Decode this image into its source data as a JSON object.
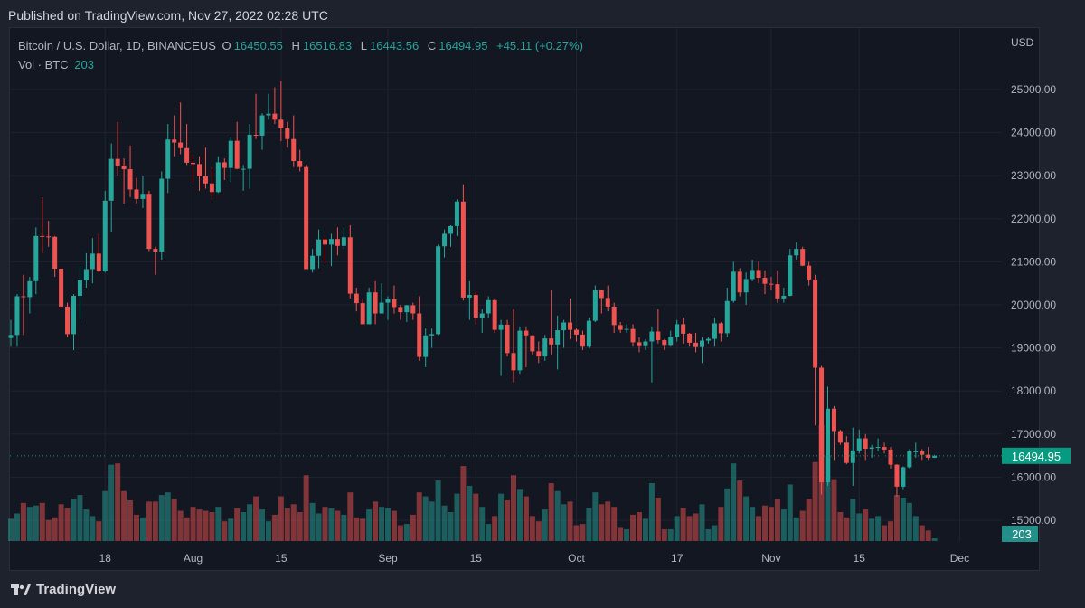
{
  "published": "Published on TradingView.com, Nov 27, 2022 02:28 UTC",
  "legend": {
    "symbol": "Bitcoin / U.S. Dollar, 1D, BINANCEUS",
    "o_label": "O",
    "o": "16450.55",
    "h_label": "H",
    "h": "16516.83",
    "l_label": "L",
    "l": "16443.56",
    "c_label": "C",
    "c": "16494.95",
    "change": "+45.11 (+0.27%)",
    "vol_label": "Vol · BTC",
    "vol": "203"
  },
  "footer": {
    "brand": "TradingView",
    "logo_icon": "tradingview-logo-icon"
  },
  "colors": {
    "up": "#26a69a",
    "down": "#ef5350",
    "background": "#131722",
    "last_price": "#089981"
  },
  "chart_data": {
    "type": "candlestick",
    "title": "Bitcoin / U.S. Dollar, 1D, BINANCEUS",
    "currency_label": "USD",
    "first_date": "2022-07-03",
    "last_date": "2022-11-27",
    "ylim": [
      14500,
      26000
    ],
    "y_ticks": [
      "25000.00",
      "24000.00",
      "23000.00",
      "22000.00",
      "21000.00",
      "20000.00",
      "19000.00",
      "18000.00",
      "17000.00",
      "16000.00",
      "15000.00"
    ],
    "x_ticks": [
      {
        "label": "18",
        "date": "2022-07-18"
      },
      {
        "label": "Aug",
        "date": "2022-08-01"
      },
      {
        "label": "15",
        "date": "2022-08-15"
      },
      {
        "label": "Sep",
        "date": "2022-09-01"
      },
      {
        "label": "15",
        "date": "2022-09-15"
      },
      {
        "label": "Oct",
        "date": "2022-10-01"
      },
      {
        "label": "17",
        "date": "2022-10-17"
      },
      {
        "label": "Nov",
        "date": "2022-11-01"
      },
      {
        "label": "15",
        "date": "2022-11-15"
      },
      {
        "label": "Dec",
        "date": "2022-12-01"
      }
    ],
    "last_price_label": "16494.95",
    "last_volume_label": "203",
    "grid": true,
    "columns": [
      "open",
      "high",
      "low",
      "close",
      "volume"
    ],
    "candles": [
      [
        19230,
        19650,
        19050,
        19300,
        1700
      ],
      [
        19300,
        20250,
        19050,
        20200,
        2100
      ],
      [
        20200,
        20700,
        19300,
        20180,
        2900
      ],
      [
        20180,
        20650,
        19800,
        20550,
        2600
      ],
      [
        20550,
        21800,
        20250,
        21600,
        2700
      ],
      [
        21600,
        22500,
        21200,
        21590,
        2900
      ],
      [
        21590,
        21950,
        21350,
        21580,
        1600
      ],
      [
        21580,
        21600,
        20650,
        20840,
        1800
      ],
      [
        20840,
        20850,
        19900,
        19960,
        2800
      ],
      [
        19960,
        20050,
        19250,
        19320,
        2500
      ],
      [
        19320,
        20250,
        18950,
        20210,
        3200
      ],
      [
        20210,
        20900,
        19650,
        20570,
        3500
      ],
      [
        20570,
        21200,
        20400,
        20830,
        2400
      ],
      [
        20830,
        21550,
        20500,
        21190,
        1900
      ],
      [
        21190,
        21650,
        20750,
        20780,
        1500
      ],
      [
        20780,
        22650,
        20750,
        22420,
        3800
      ],
      [
        22420,
        23750,
        21700,
        23390,
        5800
      ],
      [
        23390,
        24250,
        23000,
        23230,
        5900
      ],
      [
        23230,
        23400,
        22350,
        23150,
        3800
      ],
      [
        23150,
        23700,
        22500,
        22680,
        3100
      ],
      [
        22680,
        22950,
        22350,
        22460,
        2000
      ],
      [
        22460,
        23000,
        22250,
        22580,
        1800
      ],
      [
        22580,
        22650,
        21250,
        21300,
        3000
      ],
      [
        21300,
        21350,
        20700,
        21240,
        3000
      ],
      [
        21240,
        23100,
        21050,
        22930,
        3500
      ],
      [
        22930,
        24200,
        22600,
        23840,
        3700
      ],
      [
        23840,
        24400,
        23450,
        23770,
        3200
      ],
      [
        23770,
        24700,
        23500,
        23640,
        2300
      ],
      [
        23640,
        24200,
        23250,
        23300,
        1800
      ],
      [
        23300,
        23500,
        22850,
        23270,
        2600
      ],
      [
        23270,
        23450,
        22650,
        22990,
        2400
      ],
      [
        22990,
        23650,
        22700,
        22820,
        2300
      ],
      [
        22820,
        23200,
        22450,
        22620,
        2200
      ],
      [
        22620,
        23450,
        22600,
        23310,
        2600
      ],
      [
        23310,
        23400,
        22900,
        23180,
        1500
      ],
      [
        23180,
        23900,
        22850,
        23810,
        1700
      ],
      [
        23810,
        24250,
        23150,
        23160,
        2500
      ],
      [
        23160,
        23250,
        22650,
        23160,
        2200
      ],
      [
        23160,
        24200,
        22700,
        23950,
        2800
      ],
      [
        23950,
        24900,
        23850,
        23930,
        3400
      ],
      [
        23930,
        24450,
        23600,
        24400,
        2400
      ],
      [
        24400,
        24900,
        24300,
        24440,
        1500
      ],
      [
        24440,
        25050,
        24200,
        24300,
        2000
      ],
      [
        24300,
        25200,
        23800,
        24100,
        3400
      ],
      [
        24100,
        24250,
        23650,
        23850,
        2500
      ],
      [
        23850,
        24400,
        23200,
        23340,
        2800
      ],
      [
        23340,
        23600,
        23100,
        23200,
        2200
      ],
      [
        23200,
        23250,
        20850,
        20830,
        5000
      ],
      [
        20830,
        21300,
        20750,
        21140,
        2900
      ],
      [
        21140,
        21750,
        20850,
        21520,
        2100
      ],
      [
        21520,
        21600,
        20950,
        21400,
        2600
      ],
      [
        21400,
        21650,
        20900,
        21530,
        2500
      ],
      [
        21530,
        21800,
        21150,
        21370,
        2300
      ],
      [
        21370,
        21800,
        21300,
        21570,
        2000
      ],
      [
        21570,
        21850,
        20150,
        20260,
        3700
      ],
      [
        20260,
        20400,
        19850,
        20040,
        1800
      ],
      [
        20040,
        20150,
        19550,
        19550,
        1700
      ],
      [
        19550,
        20400,
        19550,
        20290,
        2400
      ],
      [
        20290,
        20550,
        19550,
        19800,
        3000
      ],
      [
        19800,
        20500,
        19800,
        20050,
        2600
      ],
      [
        20050,
        20200,
        19650,
        20130,
        2500
      ],
      [
        20130,
        20450,
        19800,
        19950,
        2300
      ],
      [
        19950,
        20000,
        19650,
        19830,
        1200
      ],
      [
        19830,
        20000,
        19600,
        19990,
        1300
      ],
      [
        19990,
        20050,
        19650,
        19800,
        2000
      ],
      [
        19800,
        20200,
        18700,
        18790,
        3700
      ],
      [
        18790,
        19450,
        18550,
        19290,
        3400
      ],
      [
        19290,
        19450,
        19000,
        19320,
        3000
      ],
      [
        19320,
        21400,
        19300,
        21360,
        4600
      ],
      [
        21360,
        21750,
        21100,
        21650,
        2700
      ],
      [
        21650,
        21850,
        21350,
        21830,
        2200
      ],
      [
        21830,
        22450,
        21600,
        22400,
        3600
      ],
      [
        22400,
        22800,
        20100,
        20170,
        5700
      ],
      [
        20170,
        20550,
        19650,
        20230,
        4200
      ],
      [
        20230,
        20300,
        19550,
        19700,
        3600
      ],
      [
        19700,
        19900,
        19350,
        19800,
        2600
      ],
      [
        19800,
        20200,
        19700,
        20110,
        1300
      ],
      [
        20110,
        20150,
        19350,
        19420,
        1900
      ],
      [
        19420,
        19650,
        18350,
        19540,
        3600
      ],
      [
        19540,
        19650,
        18800,
        18880,
        3100
      ],
      [
        18880,
        19900,
        18200,
        18480,
        5000
      ],
      [
        18480,
        19500,
        18400,
        19400,
        3900
      ],
      [
        19400,
        19500,
        18550,
        19290,
        3400
      ],
      [
        19290,
        19300,
        18850,
        18920,
        1900
      ],
      [
        18920,
        19150,
        18650,
        18800,
        1500
      ],
      [
        18800,
        19300,
        18700,
        19220,
        2400
      ],
      [
        19220,
        20350,
        18850,
        19080,
        4400
      ],
      [
        19080,
        19750,
        18500,
        19410,
        3800
      ],
      [
        19410,
        19650,
        19000,
        19590,
        2800
      ],
      [
        19590,
        20150,
        19200,
        19420,
        3000
      ],
      [
        19420,
        19450,
        19150,
        19310,
        1200
      ],
      [
        19310,
        19400,
        18950,
        19050,
        1300
      ],
      [
        19050,
        19700,
        19000,
        19630,
        2500
      ],
      [
        19630,
        20450,
        19600,
        20340,
        3700
      ],
      [
        20340,
        20350,
        19800,
        20160,
        2800
      ],
      [
        20160,
        20450,
        19850,
        19960,
        3000
      ],
      [
        19960,
        20050,
        19350,
        19530,
        2600
      ],
      [
        19530,
        19600,
        19350,
        19420,
        1000
      ],
      [
        19420,
        19550,
        19350,
        19440,
        900
      ],
      [
        19440,
        19550,
        19050,
        19130,
        2000
      ],
      [
        19130,
        19250,
        18900,
        19060,
        2200
      ],
      [
        19060,
        19200,
        18950,
        19150,
        1700
      ],
      [
        19150,
        19500,
        18200,
        19380,
        4400
      ],
      [
        19380,
        19900,
        19100,
        19180,
        3300
      ],
      [
        19180,
        19200,
        18950,
        19070,
        900
      ],
      [
        19070,
        19400,
        19050,
        19260,
        900
      ],
      [
        19260,
        19650,
        19150,
        19550,
        1900
      ],
      [
        19550,
        19700,
        19100,
        19330,
        2500
      ],
      [
        19330,
        19350,
        19050,
        19120,
        1900
      ],
      [
        19120,
        19350,
        18900,
        19040,
        2100
      ],
      [
        19040,
        19250,
        18650,
        19170,
        2800
      ],
      [
        19170,
        19250,
        19100,
        19210,
        900
      ],
      [
        19210,
        19700,
        19050,
        19570,
        1200
      ],
      [
        19570,
        19600,
        19150,
        19340,
        2600
      ],
      [
        19340,
        20400,
        19250,
        20090,
        4000
      ],
      [
        20090,
        21000,
        20050,
        20770,
        5900
      ],
      [
        20770,
        20850,
        20200,
        20290,
        4600
      ],
      [
        20290,
        20750,
        20000,
        20600,
        3400
      ],
      [
        20600,
        21050,
        20550,
        20810,
        2600
      ],
      [
        20810,
        21000,
        20500,
        20630,
        1900
      ],
      [
        20630,
        20800,
        20250,
        20490,
        2700
      ],
      [
        20490,
        20650,
        20350,
        20480,
        2600
      ],
      [
        20480,
        20800,
        20050,
        20150,
        3200
      ],
      [
        20150,
        20400,
        20050,
        20210,
        2400
      ],
      [
        20210,
        21300,
        20200,
        21150,
        4300
      ],
      [
        21150,
        21450,
        21050,
        21300,
        1800
      ],
      [
        21300,
        21350,
        20900,
        20910,
        2300
      ],
      [
        20910,
        21000,
        20450,
        20590,
        3200
      ],
      [
        20590,
        20700,
        17200,
        18540,
        6000
      ],
      [
        18540,
        18600,
        15600,
        15880,
        8800
      ],
      [
        15880,
        18100,
        15800,
        17590,
        6500
      ],
      [
        17590,
        17650,
        16400,
        17070,
        4700
      ],
      [
        17070,
        17100,
        16750,
        16800,
        2200
      ],
      [
        16800,
        16950,
        16300,
        16330,
        1800
      ],
      [
        16330,
        17150,
        15800,
        16620,
        3200
      ],
      [
        16620,
        17100,
        16550,
        16900,
        2100
      ],
      [
        16900,
        17000,
        16400,
        16660,
        2400
      ],
      [
        16660,
        16750,
        16450,
        16690,
        1700
      ],
      [
        16690,
        16900,
        16600,
        16700,
        1900
      ],
      [
        16700,
        16800,
        16550,
        16640,
        1200
      ],
      [
        16640,
        16700,
        16200,
        16290,
        1500
      ],
      [
        16290,
        16300,
        15550,
        15780,
        3500
      ],
      [
        15780,
        16250,
        15700,
        16230,
        3300
      ],
      [
        16230,
        16650,
        16200,
        16600,
        2900
      ],
      [
        16600,
        16800,
        16450,
        16600,
        1900
      ],
      [
        16600,
        16650,
        16400,
        16520,
        1200
      ],
      [
        16520,
        16700,
        16400,
        16450,
        800
      ],
      [
        16450.55,
        16516.83,
        16443.56,
        16494.95,
        203
      ]
    ]
  }
}
